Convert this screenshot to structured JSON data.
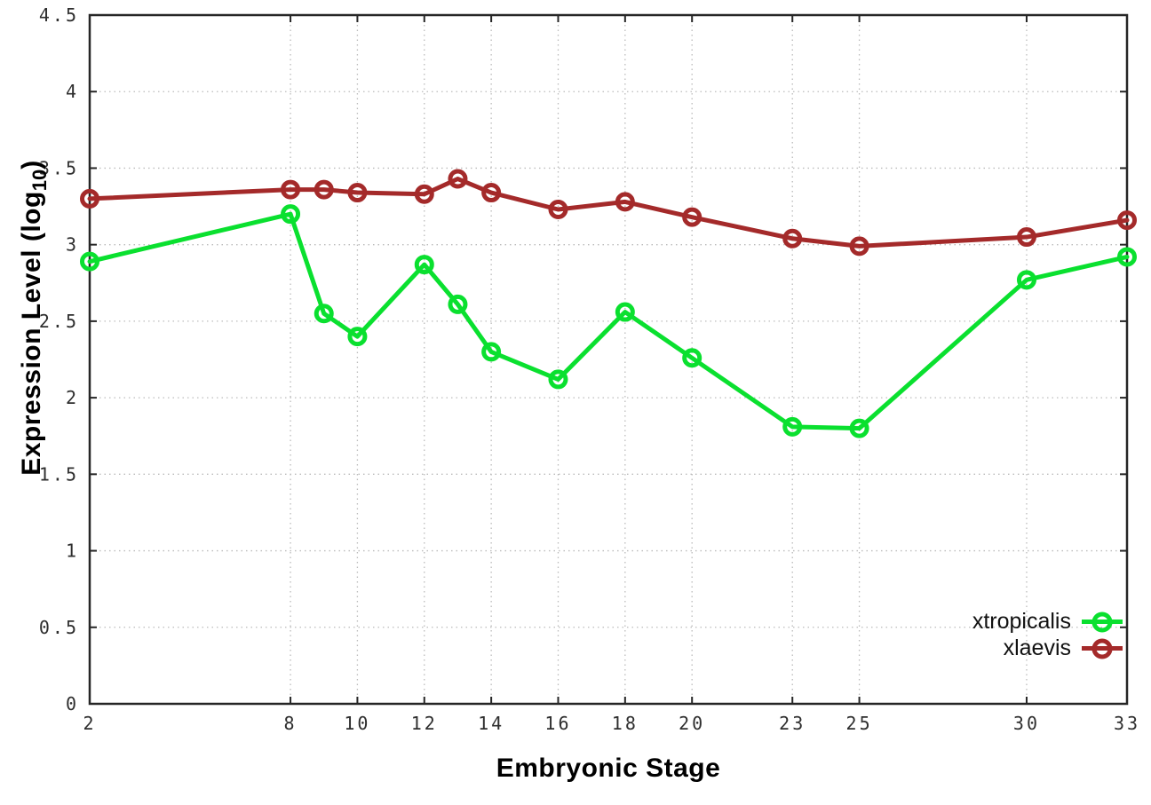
{
  "chart_data": {
    "type": "line",
    "title": "",
    "xlabel": "Embryonic Stage",
    "ylabel": "Expression Level (log10)",
    "ylabel_parts": {
      "main": "Expression Level (log",
      "sub": "10",
      "suffix": ")"
    },
    "xlim": [
      2,
      33
    ],
    "ylim": [
      0,
      4.5
    ],
    "xticks": [
      2,
      8,
      10,
      12,
      14,
      16,
      18,
      20,
      23,
      25,
      30,
      33
    ],
    "yticks": [
      0,
      0.5,
      1,
      1.5,
      2,
      2.5,
      3,
      3.5,
      4,
      4.5
    ],
    "grid": true,
    "legend_position": "bottom-right",
    "x": [
      2,
      8,
      9,
      10,
      12,
      13,
      14,
      16,
      18,
      20,
      23,
      25,
      30,
      33
    ],
    "series": [
      {
        "name": "xtropicalis",
        "color": "#0ae02f",
        "values": [
          2.89,
          3.2,
          2.55,
          2.4,
          2.87,
          2.61,
          2.3,
          2.12,
          2.56,
          2.26,
          1.81,
          1.8,
          2.77,
          2.92
        ]
      },
      {
        "name": "xlaevis",
        "color": "#a42a2a",
        "values": [
          3.3,
          3.36,
          3.36,
          3.34,
          3.33,
          3.43,
          3.34,
          3.23,
          3.28,
          3.18,
          3.04,
          2.99,
          3.05,
          3.16
        ]
      }
    ],
    "colors": {
      "background": "#ffffff",
      "grid": "#bbbbbb",
      "border": "#262626",
      "tick_text": "#2e2e2e"
    }
  }
}
